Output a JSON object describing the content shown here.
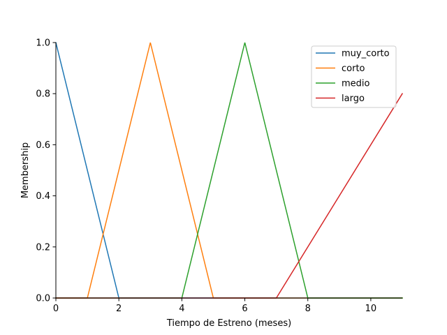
{
  "chart_data": {
    "type": "line",
    "title": "",
    "xlabel": "Tiempo de Estreno (meses)",
    "ylabel": "Membership",
    "xlim": [
      0,
      11
    ],
    "ylim": [
      0,
      1.0
    ],
    "x_ticks": [
      0,
      2,
      4,
      6,
      8,
      10
    ],
    "x_tick_labels": [
      "0",
      "2",
      "4",
      "6",
      "8",
      "10"
    ],
    "y_ticks": [
      0,
      0.2,
      0.4,
      0.6,
      0.8,
      1.0
    ],
    "y_tick_labels": [
      "0.0",
      "0.2",
      "0.4",
      "0.6",
      "0.8",
      "1.0"
    ],
    "grid": false,
    "legend_position": "top-right",
    "series": [
      {
        "name": "muy_corto",
        "color": "#1f77b4",
        "x": [
          0,
          2,
          11
        ],
        "y": [
          1.0,
          0.0,
          0.0
        ]
      },
      {
        "name": "corto",
        "color": "#ff7f0e",
        "x": [
          0,
          1,
          3,
          5,
          11
        ],
        "y": [
          0.0,
          0.0,
          1.0,
          0.0,
          0.0
        ]
      },
      {
        "name": "medio",
        "color": "#2ca02c",
        "x": [
          0,
          4,
          6,
          8,
          11
        ],
        "y": [
          0.0,
          0.0,
          1.0,
          0.0,
          0.0
        ]
      },
      {
        "name": "largo",
        "color": "#d62728",
        "x": [
          0,
          7,
          11
        ],
        "y": [
          0.0,
          0.0,
          0.8
        ]
      }
    ]
  }
}
